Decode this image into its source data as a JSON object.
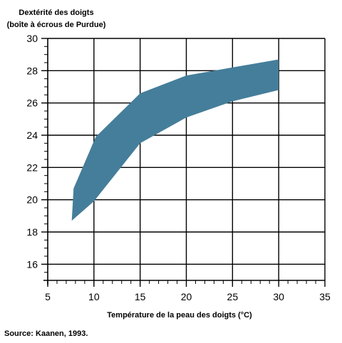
{
  "chart_data": {
    "type": "area",
    "title": "",
    "ylabel_lines": [
      "Dextérité des doigts",
      "(boîte à écrous de Purdue)"
    ],
    "xlabel": "Température de la peau des doigts (°C)",
    "xlim": [
      5,
      35
    ],
    "ylim": [
      15,
      30
    ],
    "x_ticks": [
      5,
      10,
      15,
      20,
      25,
      30,
      35
    ],
    "y_ticks": [
      16,
      18,
      20,
      22,
      24,
      26,
      28,
      30
    ],
    "x_ticks_labels": [
      "5",
      "10",
      "15",
      "20",
      "25",
      "30",
      "35"
    ],
    "y_ticks_labels": [
      "16",
      "18",
      "20",
      "22",
      "24",
      "26",
      "28",
      "30"
    ],
    "grid": true,
    "band": {
      "color": "#457e9a",
      "upper": [
        [
          7.8,
          20.7
        ],
        [
          10.2,
          23.9
        ],
        [
          15,
          26.6
        ],
        [
          20,
          27.7
        ],
        [
          25,
          28.2
        ],
        [
          30,
          28.7
        ]
      ],
      "lower": [
        [
          7.6,
          18.7
        ],
        [
          10,
          19.9
        ],
        [
          15,
          23.5
        ],
        [
          20,
          25.1
        ],
        [
          25,
          26.1
        ],
        [
          30,
          26.8
        ]
      ]
    }
  },
  "source": "Source: Kaanen, 1993."
}
